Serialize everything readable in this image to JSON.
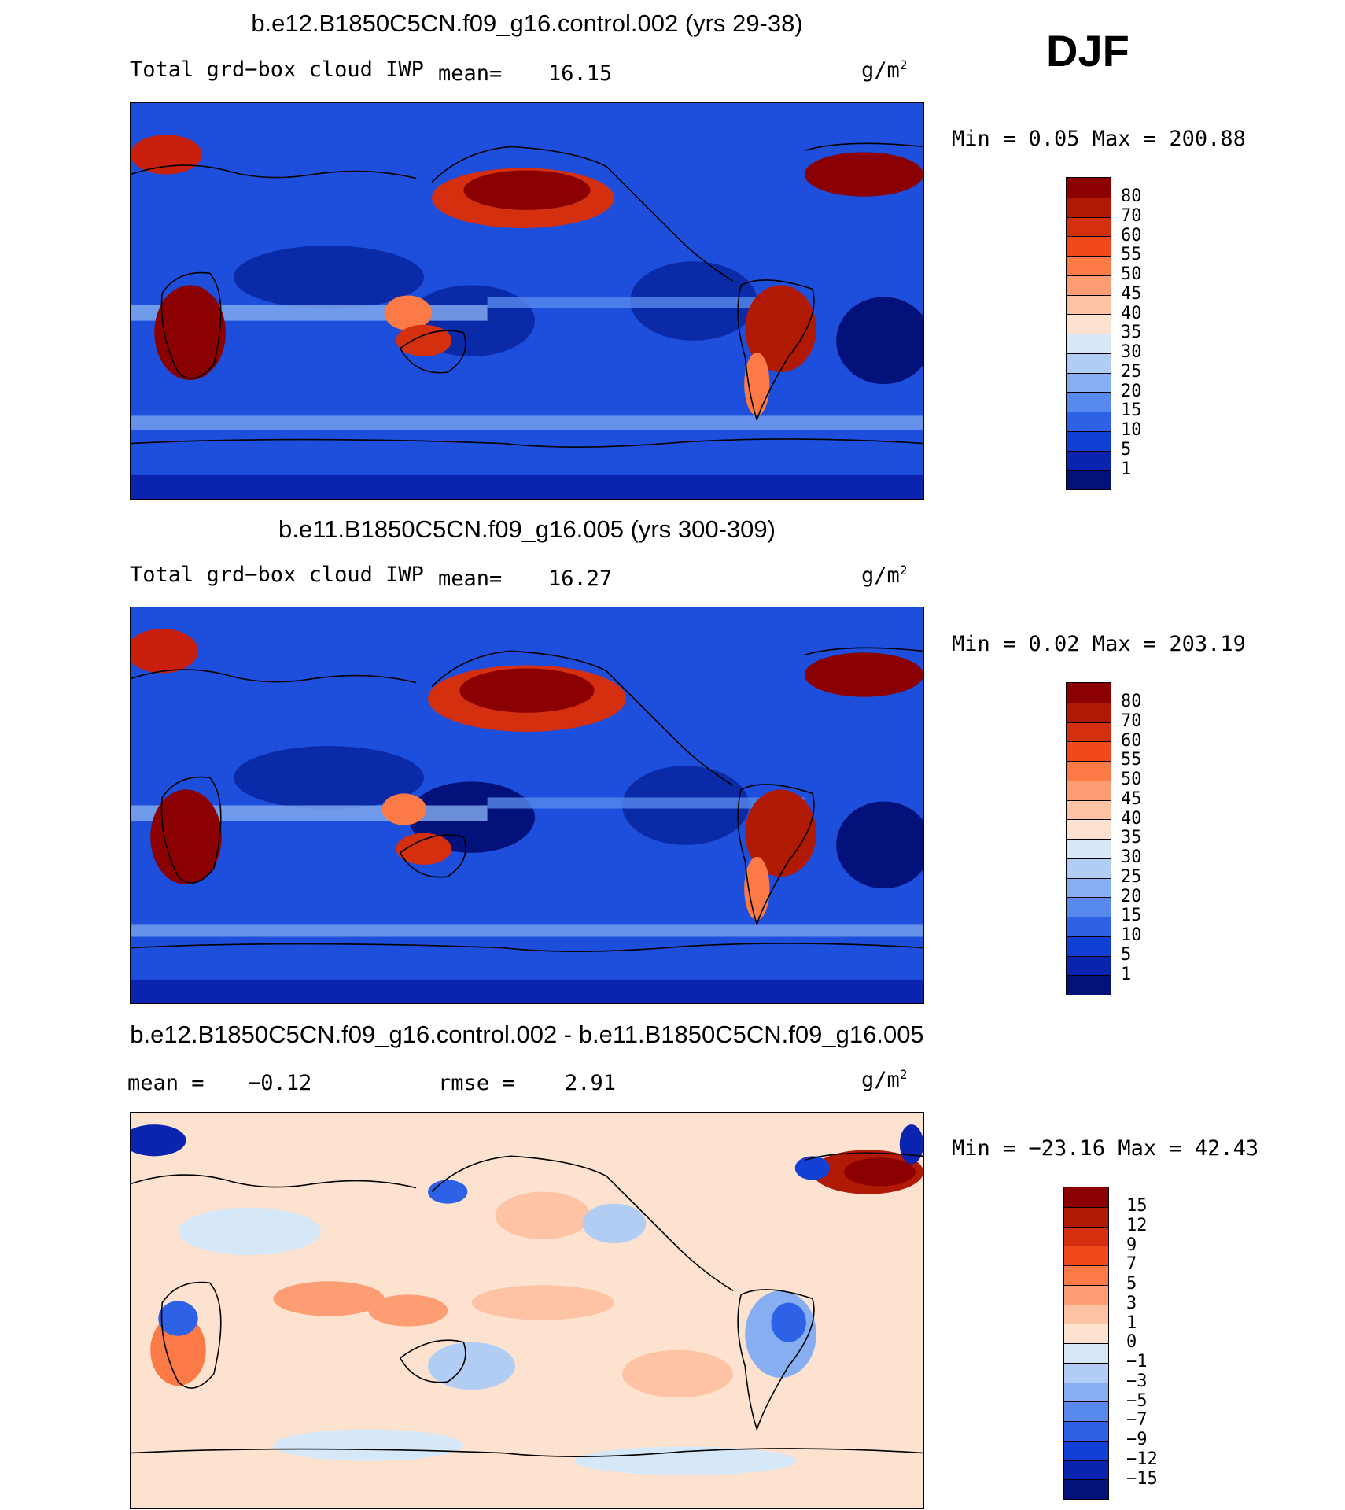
{
  "season": "DJF",
  "panels": [
    {
      "title": "b.e12.B1850C5CN.f09_g16.control.002 (yrs 29-38)",
      "left_label": "Total grd−box cloud IWP",
      "mean_label": "mean=",
      "mean_value": "16.15",
      "units_base": "g/m",
      "units_exp": "2",
      "minmax": "Min =    0.05 Max =  200.88",
      "colorbar_labels": [
        "80",
        "70",
        "60",
        "55",
        "50",
        "45",
        "40",
        "35",
        "30",
        "25",
        "20",
        "15",
        "10",
        "5",
        "1"
      ],
      "colorbar_colors": [
        "#8b0000",
        "#b01a05",
        "#d43010",
        "#f04a1c",
        "#fb7a45",
        "#fc9d74",
        "#fdc3a4",
        "#fde3cf",
        "#d6e7f8",
        "#b1cdf4",
        "#86aef0",
        "#5889ec",
        "#2d62e6",
        "#1240d4",
        "#0a24b0",
        "#03127a"
      ]
    },
    {
      "title": "b.e11.B1850C5CN.f09_g16.005 (yrs 300-309)",
      "left_label": "Total grd−box cloud IWP",
      "mean_label": "mean=",
      "mean_value": "16.27",
      "units_base": "g/m",
      "units_exp": "2",
      "minmax": "Min =    0.02 Max =  203.19",
      "colorbar_labels": [
        "80",
        "70",
        "60",
        "55",
        "50",
        "45",
        "40",
        "35",
        "30",
        "25",
        "20",
        "15",
        "10",
        "5",
        "1"
      ],
      "colorbar_colors": [
        "#8b0000",
        "#b01a05",
        "#d43010",
        "#f04a1c",
        "#fb7a45",
        "#fc9d74",
        "#fdc3a4",
        "#fde3cf",
        "#d6e7f8",
        "#b1cdf4",
        "#86aef0",
        "#5889ec",
        "#2d62e6",
        "#1240d4",
        "#0a24b0",
        "#03127a"
      ]
    },
    {
      "title": "b.e12.B1850C5CN.f09_g16.control.002 - b.e11.B1850C5CN.f09_g16.005",
      "mean_label": "mean =",
      "mean_value": "−0.12",
      "rmse_label": "rmse =",
      "rmse_value": "2.91",
      "units_base": "g/m",
      "units_exp": "2",
      "minmax": "Min = −23.16 Max =   42.43",
      "colorbar_labels": [
        "15",
        "12",
        "9",
        "7",
        "5",
        "3",
        "1",
        "0",
        "−1",
        "−3",
        "−5",
        "−7",
        "−9",
        "−12",
        "−15"
      ],
      "colorbar_colors": [
        "#8b0000",
        "#b01a05",
        "#d43010",
        "#f04a1c",
        "#fb7a45",
        "#fc9d74",
        "#fdc3a4",
        "#fde3cf",
        "#d6e7f8",
        "#b1cdf4",
        "#86aef0",
        "#5889ec",
        "#2d62e6",
        "#1240d4",
        "#0a24b0",
        "#03127a"
      ]
    }
  ],
  "colors": {
    "ocean_field": "#1d4fdc",
    "low_field": "#0a2aa8",
    "high_field": "#c8200c",
    "diff_background": "#fde3cf",
    "coastline": "#000000"
  }
}
